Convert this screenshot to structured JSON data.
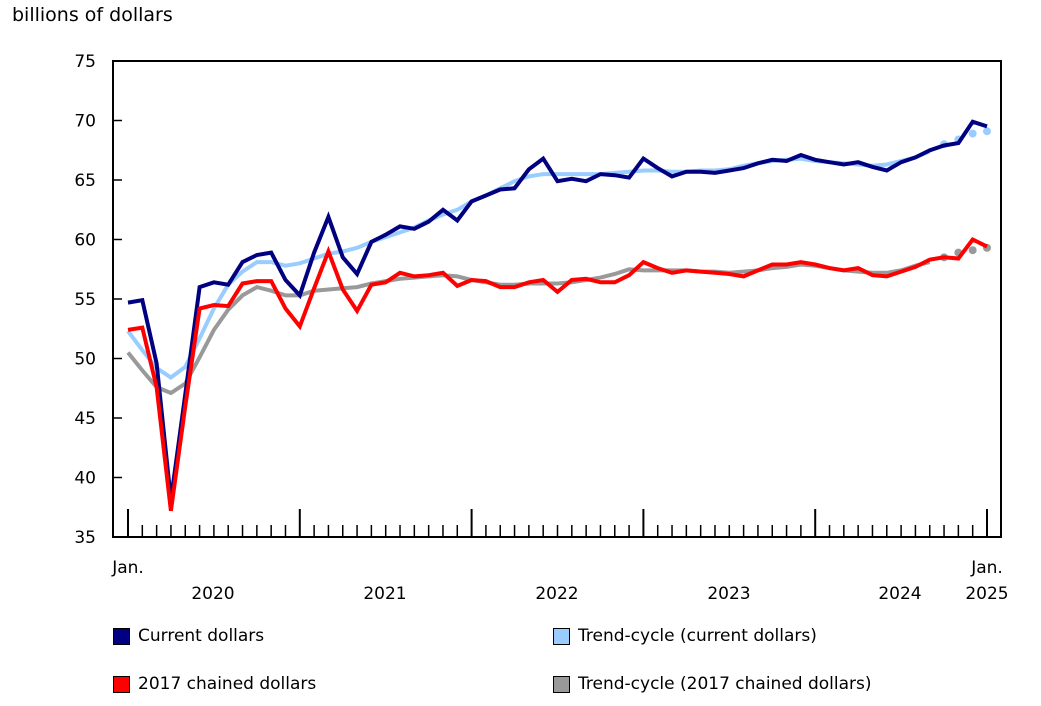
{
  "chart_data": {
    "type": "line",
    "ylabel": "billions of dollars",
    "ylim": [
      35,
      75
    ],
    "yticks": [
      35,
      40,
      45,
      50,
      55,
      60,
      65,
      70,
      75
    ],
    "x_start": "2020-01",
    "x_end": "2025-01",
    "x_labels": {
      "start": "Jan.",
      "end": "Jan.",
      "years": [
        "2020",
        "2021",
        "2022",
        "2023",
        "2024",
        "2025"
      ]
    },
    "legend_placement": "bottom",
    "grid": false,
    "series": [
      {
        "name": "Current dollars",
        "color": "#000080",
        "style": "solid",
        "values": [
          54.7,
          54.9,
          49.6,
          38.1,
          47.0,
          56.0,
          56.4,
          56.2,
          58.1,
          58.7,
          58.9,
          56.6,
          55.3,
          58.9,
          61.9,
          58.5,
          57.1,
          59.8,
          60.4,
          61.1,
          60.9,
          61.5,
          62.5,
          61.6,
          63.2,
          63.7,
          64.2,
          64.3,
          65.9,
          66.8,
          64.9,
          65.1,
          64.9,
          65.5,
          65.4,
          65.2,
          66.8,
          66.0,
          65.3,
          65.7,
          65.7,
          65.6,
          65.8,
          66.0,
          66.4,
          66.7,
          66.6,
          67.1,
          66.7,
          66.5,
          66.3,
          66.5,
          66.1,
          65.8,
          66.5,
          66.9,
          67.5,
          67.9,
          68.1,
          69.9,
          69.5
        ]
      },
      {
        "name": "Trend-cycle (current dollars)",
        "color": "#99ccff",
        "style": "solid",
        "dotted_last": 4,
        "values": [
          52.3,
          50.7,
          49.2,
          48.4,
          49.3,
          51.7,
          54.2,
          56.2,
          57.3,
          58.1,
          58.1,
          57.8,
          58.0,
          58.4,
          58.8,
          59.0,
          59.3,
          59.8,
          60.2,
          60.6,
          61.0,
          61.6,
          62.1,
          62.5,
          63.2,
          63.7,
          64.3,
          64.9,
          65.3,
          65.5,
          65.5,
          65.5,
          65.5,
          65.5,
          65.6,
          65.7,
          65.8,
          65.8,
          65.7,
          65.7,
          65.8,
          65.8,
          65.9,
          66.2,
          66.4,
          66.6,
          66.7,
          66.8,
          66.6,
          66.5,
          66.4,
          66.3,
          66.2,
          66.3,
          66.6,
          66.9,
          67.4,
          68.0,
          68.4,
          68.9,
          69.1
        ]
      },
      {
        "name": "2017 chained dollars",
        "color": "#ff0000",
        "style": "solid",
        "values": [
          52.4,
          52.6,
          47.6,
          37.2,
          46.0,
          54.2,
          54.5,
          54.4,
          56.3,
          56.5,
          56.5,
          54.2,
          52.7,
          55.9,
          59.0,
          55.8,
          54.0,
          56.2,
          56.4,
          57.2,
          56.9,
          57.0,
          57.2,
          56.1,
          56.6,
          56.5,
          56.0,
          56.0,
          56.4,
          56.6,
          55.6,
          56.6,
          56.7,
          56.4,
          56.4,
          57.0,
          58.1,
          57.6,
          57.2,
          57.4,
          57.3,
          57.2,
          57.1,
          56.9,
          57.4,
          57.9,
          57.9,
          58.1,
          57.9,
          57.6,
          57.4,
          57.6,
          57.0,
          56.9,
          57.3,
          57.7,
          58.3,
          58.5,
          58.4,
          60.0,
          59.4
        ]
      },
      {
        "name": "Trend-cycle (2017 chained dollars)",
        "color": "#999999",
        "style": "solid",
        "dotted_last": 4,
        "values": [
          50.5,
          49.0,
          47.6,
          47.1,
          47.9,
          50.1,
          52.4,
          54.1,
          55.3,
          56.0,
          55.7,
          55.3,
          55.3,
          55.7,
          55.8,
          55.9,
          56.0,
          56.3,
          56.5,
          56.7,
          56.8,
          56.9,
          57.0,
          56.9,
          56.6,
          56.4,
          56.2,
          56.2,
          56.3,
          56.3,
          56.3,
          56.4,
          56.6,
          56.8,
          57.1,
          57.5,
          57.4,
          57.4,
          57.4,
          57.4,
          57.3,
          57.3,
          57.2,
          57.3,
          57.4,
          57.6,
          57.7,
          57.9,
          57.8,
          57.6,
          57.4,
          57.3,
          57.2,
          57.2,
          57.4,
          57.8,
          58.1,
          58.5,
          58.9,
          59.1,
          59.3
        ]
      }
    ]
  }
}
